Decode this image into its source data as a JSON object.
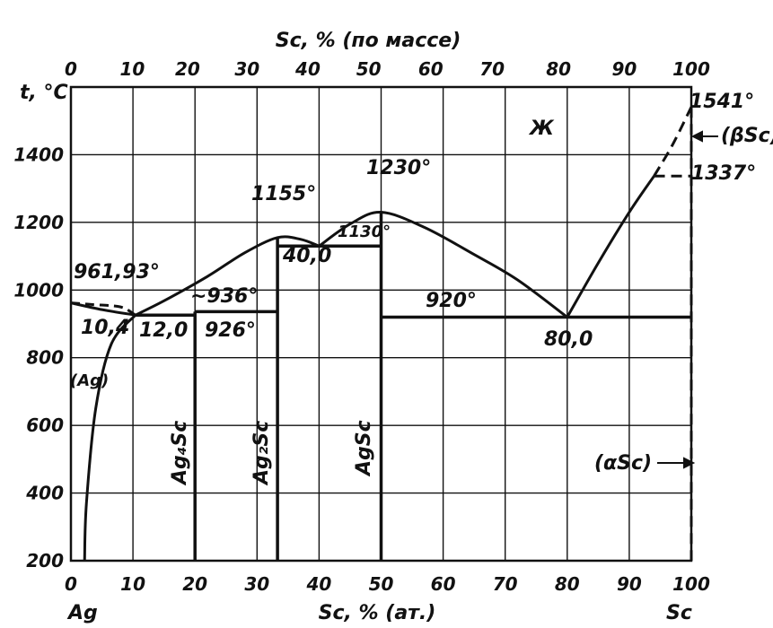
{
  "chart_data": {
    "type": "line",
    "title": "",
    "top_axis": {
      "label": "Sc, % (по массе)",
      "ticks": [
        "0",
        "10",
        "20",
        "30",
        "40",
        "50",
        "60",
        "70",
        "80",
        "90",
        "100"
      ],
      "tick_at_pct_atomic": [
        0,
        9.9,
        18.8,
        28.4,
        38.2,
        48.0,
        58.0,
        67.9,
        78.6,
        89.2,
        100
      ]
    },
    "bottom_axis": {
      "label": "Sc, % (ат.)",
      "ticks": [
        "0",
        "10",
        "20",
        "30",
        "40",
        "50",
        "60",
        "70",
        "80",
        "90",
        "100"
      ],
      "range": [
        0,
        100
      ]
    },
    "y_axis": {
      "label": "t, °C",
      "ticks": [
        "200",
        "400",
        "600",
        "800",
        "1000",
        "1200",
        "1400"
      ],
      "range": [
        200,
        1600
      ]
    },
    "corner_labels": {
      "left": "Ag",
      "right": "Sc"
    },
    "liquidus": [
      {
        "x": 0,
        "y": 961.93
      },
      {
        "x": 5,
        "y": 942
      },
      {
        "x": 10.4,
        "y": 926
      },
      {
        "x": 15,
        "y": 968
      },
      {
        "x": 22,
        "y": 1040
      },
      {
        "x": 28,
        "y": 1110
      },
      {
        "x": 33.3,
        "y": 1155
      },
      {
        "x": 37,
        "y": 1150
      },
      {
        "x": 40,
        "y": 1130
      },
      {
        "x": 45,
        "y": 1195
      },
      {
        "x": 50,
        "y": 1230
      },
      {
        "x": 57,
        "y": 1185
      },
      {
        "x": 65,
        "y": 1105
      },
      {
        "x": 72,
        "y": 1030
      },
      {
        "x": 80,
        "y": 920
      },
      {
        "x": 85,
        "y": 1080
      },
      {
        "x": 90,
        "y": 1230
      },
      {
        "x": 94,
        "y": 1337
      }
    ],
    "liquidus_dashed": [
      {
        "x": 94,
        "y": 1337
      },
      {
        "x": 97,
        "y": 1430
      },
      {
        "x": 100,
        "y": 1541
      }
    ],
    "ag_solidus": [
      {
        "x": 0,
        "y": 961.93
      },
      {
        "x": 3.5,
        "y": 957
      },
      {
        "x": 8,
        "y": 950
      },
      {
        "x": 10.4,
        "y": 926
      }
    ],
    "ag_solvus": [
      {
        "x": 2.2,
        "y": 200
      },
      {
        "x": 2.5,
        "y": 370
      },
      {
        "x": 4,
        "y": 650
      },
      {
        "x": 6.5,
        "y": 840
      },
      {
        "x": 10.4,
        "y": 926
      }
    ],
    "eutectic_lines": [
      {
        "x1": 10.4,
        "x2": 20,
        "y": 926
      },
      {
        "x1": 20,
        "x2": 33.3,
        "y": 936
      },
      {
        "x1": 33.3,
        "x2": 50,
        "y": 1130
      },
      {
        "x1": 50,
        "x2": 100,
        "y": 920
      }
    ],
    "compound_lines": [
      {
        "name": "Ag4Sc",
        "x": 20,
        "y_top": 936
      },
      {
        "name": "Ag2Sc",
        "x": 33.3,
        "y_top": 1155
      },
      {
        "name": "AgSc",
        "x": 50,
        "y_top": 1230
      }
    ],
    "sc_transition": {
      "y": 1337,
      "x_from": 94,
      "x_to": 100
    },
    "sc_side_dashed": {
      "x": 100,
      "y_from": 200,
      "y_to": 1541
    },
    "annotations": {
      "t_ag_melt": "961,93°",
      "eut1_comp": "10,4",
      "eut1_comp2": "12,0",
      "eut1_temp": "926°",
      "peritectic": "~936°",
      "ag2sc_melt": "1155°",
      "eut2_temp": "1130°",
      "eut2_comp": "40,0",
      "agsc_melt": "1230°",
      "eut3_temp": "920°",
      "eut3_comp": "80,0",
      "sc_melt": "1541°",
      "sc_transition_temp": "1337°",
      "liquid": "Ж",
      "ag_phase": "(Ag)",
      "beta_sc": "(βSc)",
      "alpha_sc": "(αSc)",
      "ag4sc": "Ag₄Sc",
      "ag2sc": "Ag₂Sc",
      "agsc": "AgSc"
    }
  }
}
